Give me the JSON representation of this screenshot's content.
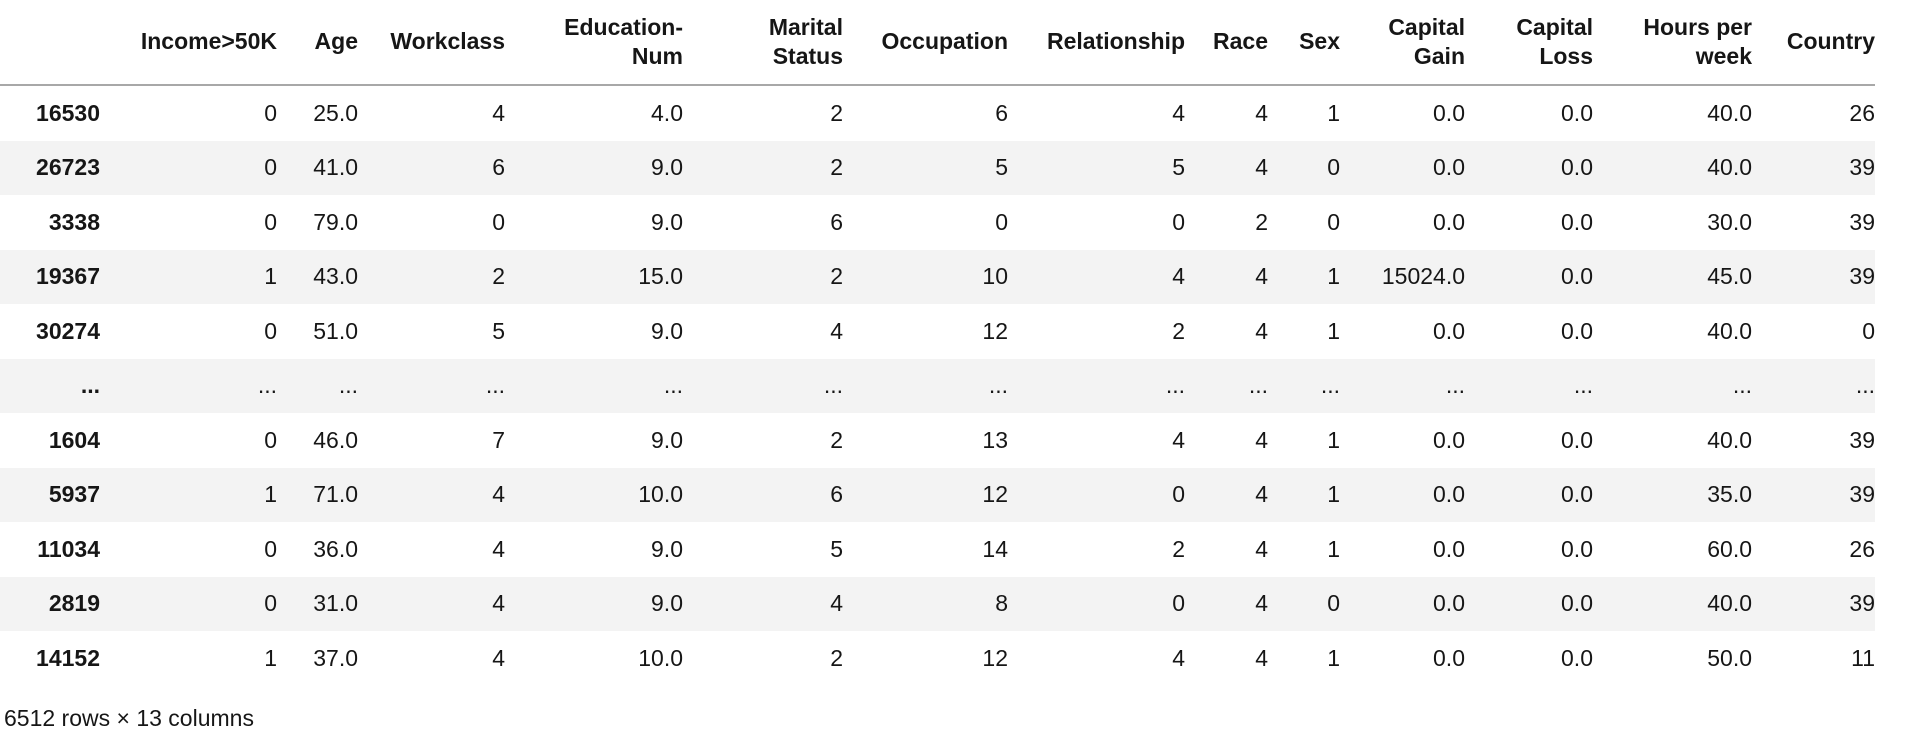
{
  "table": {
    "index_header": "",
    "columns": [
      "Income>50K",
      "Age",
      "Workclass",
      "Education-Num",
      "Marital Status",
      "Occupation",
      "Relationship",
      "Race",
      "Sex",
      "Capital Gain",
      "Capital Loss",
      "Hours per week",
      "Country"
    ],
    "rows": [
      {
        "index": "16530",
        "values": [
          "0",
          "25.0",
          "4",
          "4.0",
          "2",
          "6",
          "4",
          "4",
          "1",
          "0.0",
          "0.0",
          "40.0",
          "26"
        ]
      },
      {
        "index": "26723",
        "values": [
          "0",
          "41.0",
          "6",
          "9.0",
          "2",
          "5",
          "5",
          "4",
          "0",
          "0.0",
          "0.0",
          "40.0",
          "39"
        ]
      },
      {
        "index": "3338",
        "values": [
          "0",
          "79.0",
          "0",
          "9.0",
          "6",
          "0",
          "0",
          "2",
          "0",
          "0.0",
          "0.0",
          "30.0",
          "39"
        ]
      },
      {
        "index": "19367",
        "values": [
          "1",
          "43.0",
          "2",
          "15.0",
          "2",
          "10",
          "4",
          "4",
          "1",
          "15024.0",
          "0.0",
          "45.0",
          "39"
        ]
      },
      {
        "index": "30274",
        "values": [
          "0",
          "51.0",
          "5",
          "9.0",
          "4",
          "12",
          "2",
          "4",
          "1",
          "0.0",
          "0.0",
          "40.0",
          "0"
        ]
      },
      {
        "index": "...",
        "values": [
          "...",
          "...",
          "...",
          "...",
          "...",
          "...",
          "...",
          "...",
          "...",
          "...",
          "...",
          "...",
          "..."
        ]
      },
      {
        "index": "1604",
        "values": [
          "0",
          "46.0",
          "7",
          "9.0",
          "2",
          "13",
          "4",
          "4",
          "1",
          "0.0",
          "0.0",
          "40.0",
          "39"
        ]
      },
      {
        "index": "5937",
        "values": [
          "1",
          "71.0",
          "4",
          "10.0",
          "6",
          "12",
          "0",
          "4",
          "1",
          "0.0",
          "0.0",
          "35.0",
          "39"
        ]
      },
      {
        "index": "11034",
        "values": [
          "0",
          "36.0",
          "4",
          "9.0",
          "5",
          "14",
          "2",
          "4",
          "1",
          "0.0",
          "0.0",
          "60.0",
          "26"
        ]
      },
      {
        "index": "2819",
        "values": [
          "0",
          "31.0",
          "4",
          "9.0",
          "4",
          "8",
          "0",
          "4",
          "0",
          "0.0",
          "0.0",
          "40.0",
          "39"
        ]
      },
      {
        "index": "14152",
        "values": [
          "1",
          "37.0",
          "4",
          "10.0",
          "2",
          "12",
          "4",
          "4",
          "1",
          "0.0",
          "0.0",
          "50.0",
          "11"
        ]
      }
    ],
    "footer": "6512 rows × 13 columns"
  },
  "colors": {
    "stripe": "#f3f3f3",
    "header_border": "#a8a8a8",
    "text": "#161616"
  }
}
